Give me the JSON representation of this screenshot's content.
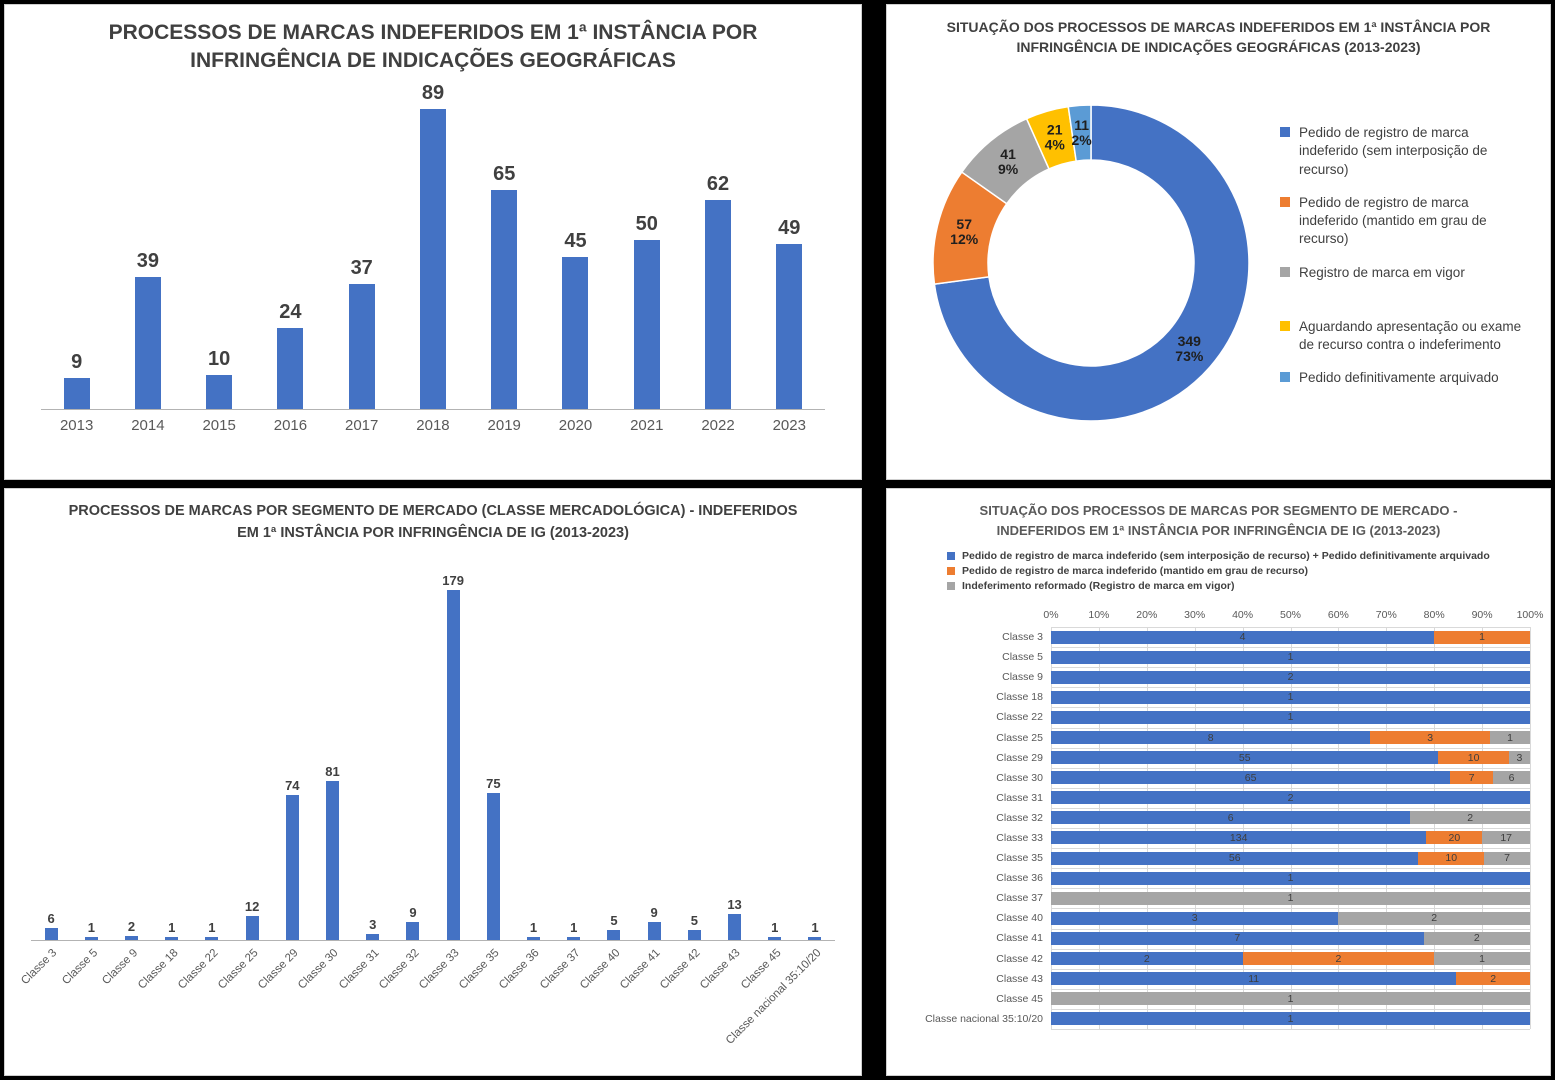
{
  "colors": {
    "blue": "#4472C4",
    "orange": "#ED7D31",
    "gray": "#A5A5A5",
    "yellow": "#FFC000",
    "light_blue": "#5B9BD5",
    "title_dark": "#404040",
    "title_gray": "#595959",
    "page_bg": "#000000",
    "panel_bg": "#FFFFFF"
  },
  "chart_data": [
    {
      "id": "bars-by-year",
      "type": "bar",
      "title": "PROCESSOS DE MARCAS INDEFERIDOS EM 1ª INSTÂNCIA POR INFRINGÊNCIA DE INDICAÇÕES GEOGRÁFICAS",
      "categories": [
        "2013",
        "2014",
        "2015",
        "2016",
        "2017",
        "2018",
        "2019",
        "2020",
        "2021",
        "2022",
        "2023"
      ],
      "values": [
        9,
        39,
        10,
        24,
        37,
        89,
        65,
        45,
        50,
        62,
        49
      ],
      "bar_color": "#4472C4",
      "xlabel": "",
      "ylabel": "",
      "ylim": [
        0,
        89
      ],
      "grid": false,
      "legend": "none",
      "data_labels": "above-bars"
    },
    {
      "id": "donut-situacao",
      "type": "pie",
      "subtype": "donut",
      "title": "SITUAÇÃO DOS PROCESSOS DE MARCAS INDEFERIDOS EM 1ª INSTÂNCIA POR INFRINGÊNCIA DE INDICAÇÕES GEOGRÁFICAS (2013-2023)",
      "legend": "right",
      "start_angle": "top-clockwise",
      "slices": [
        {
          "label": "Pedido de registro de marca indeferido (sem interposição de recurso)",
          "value": 349,
          "pct": "73%",
          "color": "#4472C4"
        },
        {
          "label": "Pedido de registro de marca indeferido (mantido em grau de recurso)",
          "value": 57,
          "pct": "12%",
          "color": "#ED7D31"
        },
        {
          "label": "Registro de marca em vigor",
          "value": 41,
          "pct": "9%",
          "color": "#A5A5A5"
        },
        {
          "label": "Aguardando apresentação ou exame de recurso contra o indeferimento",
          "value": 21,
          "pct": "4%",
          "color": "#FFC000"
        },
        {
          "label": "Pedido definitivamente arquivado",
          "value": 11,
          "pct": "2%",
          "color": "#5B9BD5"
        }
      ]
    },
    {
      "id": "bars-by-class",
      "type": "bar",
      "title": "PROCESSOS DE MARCAS POR SEGMENTO DE MERCADO (CLASSE MERCADOLÓGICA) - INDEFERIDOS EM 1ª INSTÂNCIA POR INFRINGÊNCIA DE IG (2013-2023)",
      "categories": [
        "Classe 3",
        "Classe 5",
        "Classe 9",
        "Classe 18",
        "Classe 22",
        "Classe 25",
        "Classe 29",
        "Classe 30",
        "Classe 31",
        "Classe 32",
        "Classe 33",
        "Classe 35",
        "Classe 36",
        "Classe 37",
        "Classe 40",
        "Classe 41",
        "Classe 42",
        "Classe 43",
        "Classe 45",
        "Classe nacional 35:10/20"
      ],
      "values": [
        6,
        1,
        2,
        1,
        1,
        12,
        74,
        81,
        3,
        9,
        179,
        75,
        1,
        1,
        5,
        9,
        5,
        13,
        1,
        1
      ],
      "bar_color": "#4472C4",
      "xlabel": "",
      "ylabel": "",
      "ylim": [
        0,
        179
      ],
      "grid": false,
      "legend": "none",
      "data_labels": "above-bars"
    },
    {
      "id": "stacked-by-class",
      "type": "bar",
      "subtype": "horizontal-stacked-100pct",
      "title": "SITUAÇÃO DOS PROCESSOS DE MARCAS POR SEGMENTO DE MERCADO - INDEFERIDOS EM 1ª INSTÂNCIA POR INFRINGÊNCIA DE IG (2013-2023)",
      "legend": "top-left",
      "legend_items": [
        {
          "label": "Pedido de registro de marca indeferido (sem interposição de recurso) + Pedido definitivamente arquivado",
          "color": "#4472C4"
        },
        {
          "label": "Pedido de registro de marca indeferido (mantido em grau de recurso)",
          "color": "#ED7D31"
        },
        {
          "label": "Indeferimento reformado (Registro de marca em vigor)",
          "color": "#A5A5A5"
        }
      ],
      "axis_ticks": [
        "0%",
        "10%",
        "20%",
        "30%",
        "40%",
        "50%",
        "60%",
        "70%",
        "80%",
        "90%",
        "100%"
      ],
      "series_keys": [
        "blue",
        "orange",
        "gray"
      ],
      "rows": [
        {
          "category": "Classe 3",
          "blue": 4,
          "orange": 1,
          "gray": 0
        },
        {
          "category": "Classe 5",
          "blue": 1,
          "orange": 0,
          "gray": 0
        },
        {
          "category": "Classe 9",
          "blue": 2,
          "orange": 0,
          "gray": 0
        },
        {
          "category": "Classe 18",
          "blue": 1,
          "orange": 0,
          "gray": 0
        },
        {
          "category": "Classe 22",
          "blue": 1,
          "orange": 0,
          "gray": 0
        },
        {
          "category": "Classe 25",
          "blue": 8,
          "orange": 3,
          "gray": 1
        },
        {
          "category": "Classe 29",
          "blue": 55,
          "orange": 10,
          "gray": 3
        },
        {
          "category": "Classe 30",
          "blue": 65,
          "orange": 7,
          "gray": 6
        },
        {
          "category": "Classe 31",
          "blue": 2,
          "orange": 0,
          "gray": 0
        },
        {
          "category": "Classe 32",
          "blue": 6,
          "orange": 0,
          "gray": 2
        },
        {
          "category": "Classe 33",
          "blue": 134,
          "orange": 20,
          "gray": 17
        },
        {
          "category": "Classe 35",
          "blue": 56,
          "orange": 10,
          "gray": 7
        },
        {
          "category": "Classe 36",
          "blue": 1,
          "orange": 0,
          "gray": 0
        },
        {
          "category": "Classe 37",
          "blue": 0,
          "orange": 0,
          "gray": 1
        },
        {
          "category": "Classe 40",
          "blue": 3,
          "orange": 0,
          "gray": 2
        },
        {
          "category": "Classe 41",
          "blue": 7,
          "orange": 0,
          "gray": 2
        },
        {
          "category": "Classe 42",
          "blue": 2,
          "orange": 2,
          "gray": 1
        },
        {
          "category": "Classe 43",
          "blue": 11,
          "orange": 2,
          "gray": 0
        },
        {
          "category": "Classe 45",
          "blue": 0,
          "orange": 0,
          "gray": 1
        },
        {
          "category": "Classe nacional 35:10/20",
          "blue": 1,
          "orange": 0,
          "gray": 0
        }
      ]
    }
  ]
}
